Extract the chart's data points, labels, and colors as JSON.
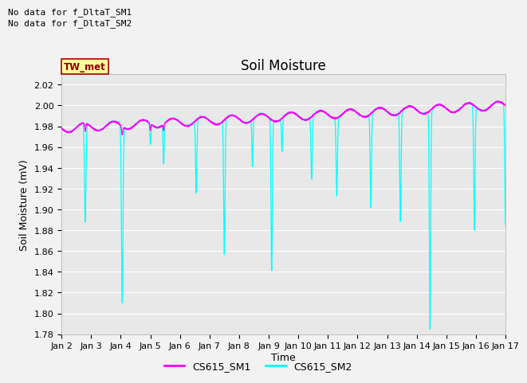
{
  "title": "Soil Moisture",
  "ylabel": "Soil Moisture (mV)",
  "xlabel": "Time",
  "ylim": [
    1.78,
    2.03
  ],
  "xlim": [
    0,
    15
  ],
  "xtick_labels": [
    "Jan 2",
    "Jan 3",
    "Jan 4",
    "Jan 5",
    "Jan 6",
    "Jan 7",
    "Jan 8",
    "Jan 9",
    "Jan 10",
    "Jan 11",
    "Jan 12",
    "Jan 13",
    "Jan 14",
    "Jan 15",
    "Jan 16",
    "Jan 17"
  ],
  "ytick_values": [
    1.78,
    1.8,
    1.82,
    1.84,
    1.86,
    1.88,
    1.9,
    1.92,
    1.94,
    1.96,
    1.98,
    2.0,
    2.02
  ],
  "color_sm1": "#FF00FF",
  "color_sm2": "#00FFFF",
  "label_sm1": "CS615_SM1",
  "label_sm2": "CS615_SM2",
  "no_data_text1": "No data for f_DltaT_SM1",
  "no_data_text2": "No data for f_DltaT_SM2",
  "tw_met_label": "TW_met",
  "tw_met_bg": "#FFFF99",
  "tw_met_fg": "#8B0000",
  "bg_color": "#E8E8E8",
  "title_fontsize": 12,
  "axis_label_fontsize": 9,
  "tick_fontsize": 8,
  "legend_fontsize": 9,
  "no_data_fontsize": 8
}
